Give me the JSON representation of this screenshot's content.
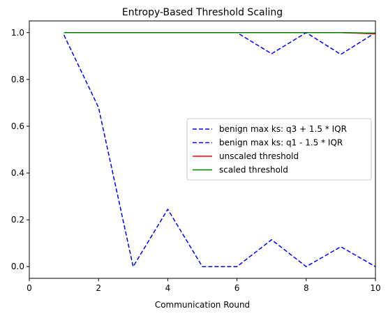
{
  "chart_data": {
    "type": "line",
    "title": "Entropy-Based Threshold Scaling",
    "xlabel": "Communication Round",
    "ylabel": "",
    "xlim": [
      0,
      10
    ],
    "ylim": [
      -0.05,
      1.05
    ],
    "x_ticks": [
      0,
      2,
      4,
      6,
      8,
      10
    ],
    "y_ticks": [
      0.0,
      0.2,
      0.4,
      0.6,
      0.8,
      1.0
    ],
    "x_tick_labels": [
      "0",
      "2",
      "4",
      "6",
      "8",
      "10"
    ],
    "y_tick_labels": [
      "0.0",
      "0.2",
      "0.4",
      "0.6",
      "0.8",
      "1.0"
    ],
    "grid": false,
    "legend_position": "center-right",
    "x": [
      1,
      2,
      3,
      4,
      5,
      6,
      7,
      8,
      9,
      10
    ],
    "series": [
      {
        "name": "benign max ks: q3 + 1.5 * IQR",
        "color": "#0000ff",
        "style": "dashed",
        "values": [
          1.0,
          1.0,
          1.0,
          1.0,
          1.0,
          1.0,
          0.91,
          1.0,
          0.907,
          1.0
        ]
      },
      {
        "name": "benign max ks: q1 - 1.5 * IQR",
        "color": "#0000ff",
        "style": "dashed",
        "values": [
          0.99,
          0.68,
          0.0,
          0.245,
          0.0,
          0.0,
          0.115,
          0.0,
          0.085,
          0.0
        ]
      },
      {
        "name": "unscaled threshold",
        "color": "#ff0000",
        "style": "solid",
        "values": [
          1.0,
          1.0,
          1.0,
          1.0,
          1.0,
          1.0,
          1.0,
          1.0,
          1.0,
          0.995
        ]
      },
      {
        "name": "scaled threshold",
        "color": "#008000",
        "style": "solid",
        "values": [
          1.0,
          1.0,
          1.0,
          1.0,
          1.0,
          1.0,
          1.0,
          1.0,
          1.0,
          0.998
        ]
      }
    ]
  }
}
